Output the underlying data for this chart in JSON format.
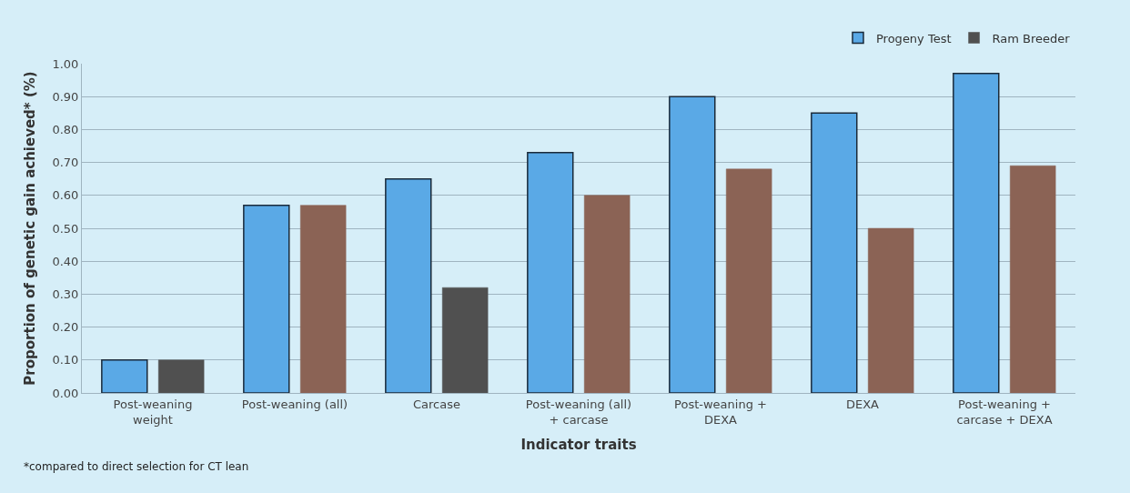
{
  "chart_data": {
    "type": "bar",
    "xlabel": "Indicator traits",
    "ylabel": "Proportion of genetic gain achieved* (%)",
    "categories": [
      "Post-weaning weight",
      "Post-weaning (all)",
      "Carcase",
      "Post-weaning (all) + carcase",
      "Post-weaning + DEXA",
      "DEXA",
      "Post-weaning + carcase + DEXA"
    ],
    "series": [
      {
        "name": "Progeny Test",
        "color": "#5aa9e6",
        "values": [
          0.1,
          0.57,
          0.65,
          0.73,
          0.9,
          0.85,
          0.97
        ]
      },
      {
        "name": "Ram Breeder",
        "color": "#505050",
        "colors": [
          "#505050",
          "#8b6355",
          "#505050",
          "#8b6355",
          "#8b6355",
          "#8b6355",
          "#8b6355"
        ],
        "values": [
          0.1,
          0.57,
          0.32,
          0.6,
          0.68,
          0.5,
          0.69
        ]
      }
    ],
    "ylim": [
      0,
      1.0
    ],
    "yticks": [
      {
        "value": 0,
        "label": "0.00"
      },
      {
        "value": 0.1,
        "label": "0.10"
      },
      {
        "value": 0.2,
        "label": "0.20"
      },
      {
        "value": 0.3,
        "label": "0.30"
      },
      {
        "value": 0.4,
        "label": "0.40"
      },
      {
        "value": 0.5,
        "label": "0.50"
      },
      {
        "value": 0.6,
        "label": "0.60"
      },
      {
        "value": 0.7,
        "label": "0.70"
      },
      {
        "value": 0.8,
        "label": "0.80"
      },
      {
        "value": 0.9,
        "label": "0.90"
      },
      {
        "value": 1.0,
        "label": "1.00"
      }
    ],
    "grid": "y",
    "legend": "top right",
    "annotations": [
      "*compared to direct selection for CT lean"
    ]
  }
}
